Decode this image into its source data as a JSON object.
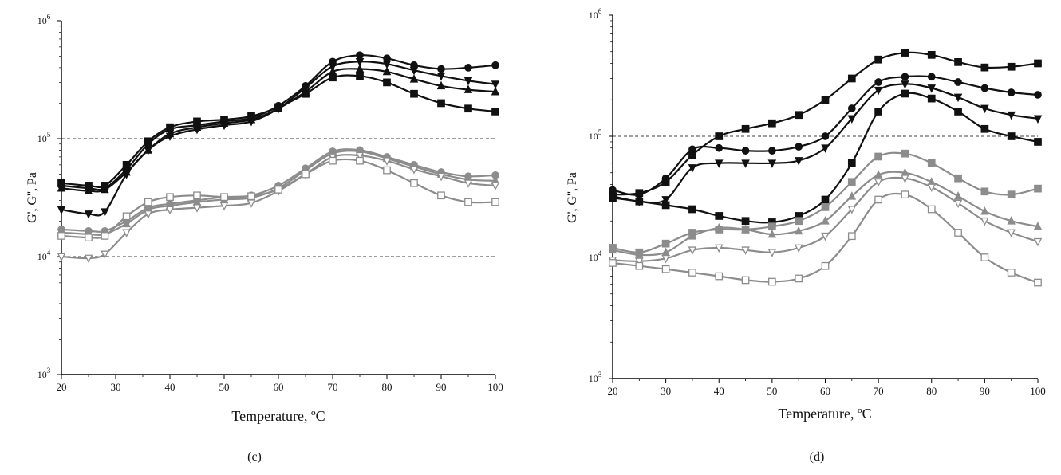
{
  "chart_data": [
    {
      "type": "line",
      "panel_label": "(c)",
      "xlabel": "Temperature, ºC",
      "ylabel": "G', G'', Pa",
      "xlim": [
        20,
        100
      ],
      "ylim": [
        1000,
        1000000
      ],
      "yscale": "log",
      "grid": false,
      "reference_lines": [
        10000,
        100000
      ],
      "x_ticks": [
        "20",
        "30",
        "40",
        "50",
        "60",
        "70",
        "80",
        "90",
        "100"
      ],
      "y_ticks": [
        {
          "value": 1000,
          "base": "10",
          "exp": "3"
        },
        {
          "value": 10000,
          "base": "10",
          "exp": "4"
        },
        {
          "value": 100000,
          "base": "10",
          "exp": "5"
        },
        {
          "value": 1000000,
          "base": "10",
          "exp": "6"
        }
      ],
      "series": [
        {
          "color": "#111111",
          "marker": "circle",
          "filled": true,
          "x": [
            20,
            25,
            28,
            32,
            36,
            40,
            45,
            50,
            55,
            60,
            65,
            70,
            75,
            80,
            85,
            90,
            95,
            100
          ],
          "y": [
            40000,
            38000,
            38000,
            55000,
            90000,
            120000,
            130000,
            140000,
            150000,
            190000,
            280000,
            450000,
            510000,
            480000,
            420000,
            390000,
            400000,
            420000
          ]
        },
        {
          "color": "#111111",
          "marker": "triangle-down",
          "filled": true,
          "x": [
            20,
            25,
            28,
            32,
            36,
            40,
            45,
            50,
            55,
            60,
            65,
            70,
            75,
            80,
            85,
            90,
            95,
            100
          ],
          "y": [
            25000,
            23000,
            24000,
            50000,
            80000,
            105000,
            120000,
            130000,
            140000,
            180000,
            270000,
            410000,
            450000,
            430000,
            380000,
            340000,
            310000,
            290000
          ]
        },
        {
          "color": "#111111",
          "marker": "triangle-up",
          "filled": true,
          "x": [
            20,
            25,
            28,
            32,
            36,
            40,
            45,
            50,
            55,
            60,
            65,
            70,
            75,
            80,
            85,
            90,
            95,
            100
          ],
          "y": [
            38000,
            36000,
            37000,
            52000,
            80000,
            110000,
            125000,
            135000,
            145000,
            180000,
            250000,
            370000,
            390000,
            370000,
            320000,
            280000,
            260000,
            250000
          ]
        },
        {
          "color": "#111111",
          "marker": "square",
          "filled": true,
          "x": [
            20,
            25,
            28,
            32,
            36,
            40,
            45,
            50,
            55,
            60,
            65,
            70,
            75,
            80,
            85,
            90,
            95,
            100
          ],
          "y": [
            42000,
            40000,
            40000,
            60000,
            95000,
            125000,
            140000,
            145000,
            155000,
            185000,
            240000,
            330000,
            340000,
            300000,
            240000,
            200000,
            180000,
            170000
          ]
        },
        {
          "color": "#8c8c8c",
          "marker": "circle",
          "filled": true,
          "x": [
            20,
            25,
            28,
            32,
            36,
            40,
            45,
            50,
            55,
            60,
            65,
            70,
            75,
            80,
            85,
            90,
            95,
            100
          ],
          "y": [
            17000,
            16500,
            16500,
            20000,
            26000,
            28000,
            30000,
            32000,
            33000,
            40000,
            56000,
            78000,
            80000,
            70000,
            60000,
            52000,
            48000,
            49000
          ]
        },
        {
          "color": "#8c8c8c",
          "marker": "triangle-up",
          "filled": true,
          "x": [
            20,
            25,
            28,
            32,
            36,
            40,
            45,
            50,
            55,
            60,
            65,
            70,
            75,
            80,
            85,
            90,
            95,
            100
          ],
          "y": [
            16000,
            15500,
            15500,
            19000,
            25000,
            27000,
            29000,
            30500,
            31500,
            38000,
            54000,
            75000,
            78000,
            68000,
            58000,
            50000,
            45000,
            44000
          ]
        },
        {
          "color": "#8c8c8c",
          "marker": "triangle-down",
          "filled": false,
          "x": [
            20,
            25,
            28,
            32,
            36,
            40,
            45,
            50,
            55,
            60,
            65,
            70,
            75,
            80,
            85,
            90,
            95,
            100
          ],
          "y": [
            10000,
            9700,
            10500,
            16000,
            23000,
            25000,
            26000,
            27000,
            28500,
            36000,
            50000,
            70000,
            72000,
            65000,
            55000,
            48000,
            42000,
            40000
          ]
        },
        {
          "color": "#8c8c8c",
          "marker": "square",
          "filled": false,
          "x": [
            20,
            25,
            28,
            32,
            36,
            40,
            45,
            50,
            55,
            60,
            65,
            70,
            75,
            80,
            85,
            90,
            95,
            100
          ],
          "y": [
            15000,
            14500,
            15000,
            22000,
            29000,
            32000,
            33000,
            32000,
            32500,
            37000,
            50000,
            65000,
            65000,
            54000,
            42000,
            33000,
            29000,
            29000
          ]
        }
      ]
    },
    {
      "type": "line",
      "panel_label": "(d)",
      "xlabel": "Temperature, ºC",
      "ylabel": "G', G'', Pa",
      "xlim": [
        20,
        100
      ],
      "ylim": [
        1000,
        1000000
      ],
      "yscale": "log",
      "grid": false,
      "reference_lines": [
        100000
      ],
      "x_ticks": [
        "20",
        "30",
        "40",
        "50",
        "60",
        "70",
        "80",
        "90",
        "100"
      ],
      "y_ticks": [
        {
          "value": 1000,
          "base": "10",
          "exp": "3"
        },
        {
          "value": 10000,
          "base": "10",
          "exp": "4"
        },
        {
          "value": 100000,
          "base": "10",
          "exp": "5"
        },
        {
          "value": 1000000,
          "base": "10",
          "exp": "6"
        }
      ],
      "series": [
        {
          "color": "#111111",
          "marker": "square",
          "filled": true,
          "x": [
            20,
            25,
            30,
            35,
            40,
            45,
            50,
            55,
            60,
            65,
            70,
            75,
            80,
            85,
            90,
            95,
            100
          ],
          "y": [
            33000,
            34000,
            42000,
            70000,
            100000,
            115000,
            128000,
            150000,
            200000,
            300000,
            430000,
            490000,
            470000,
            410000,
            370000,
            375000,
            400000
          ]
        },
        {
          "color": "#111111",
          "marker": "circle",
          "filled": true,
          "x": [
            20,
            25,
            30,
            35,
            40,
            45,
            50,
            55,
            60,
            65,
            70,
            75,
            80,
            85,
            90,
            95,
            100
          ],
          "y": [
            36000,
            33000,
            45000,
            78000,
            80000,
            76000,
            76000,
            82000,
            100000,
            170000,
            280000,
            310000,
            310000,
            280000,
            250000,
            230000,
            220000
          ]
        },
        {
          "color": "#111111",
          "marker": "triangle-down",
          "filled": true,
          "x": [
            20,
            25,
            30,
            35,
            40,
            45,
            50,
            55,
            60,
            65,
            70,
            75,
            80,
            85,
            90,
            95,
            100
          ],
          "y": [
            32000,
            29000,
            30000,
            55000,
            60000,
            60000,
            60000,
            63000,
            80000,
            140000,
            240000,
            270000,
            250000,
            210000,
            170000,
            150000,
            140000
          ]
        },
        {
          "color": "#111111",
          "marker": "square",
          "filled": true,
          "x": [
            20,
            25,
            30,
            35,
            40,
            45,
            50,
            55,
            60,
            65,
            70,
            75,
            80,
            85,
            90,
            95,
            100
          ],
          "y": [
            31000,
            29000,
            27000,
            25000,
            22000,
            20000,
            19500,
            22000,
            30000,
            60000,
            160000,
            225000,
            205000,
            160000,
            115000,
            100000,
            90000
          ]
        },
        {
          "color": "#8c8c8c",
          "marker": "square",
          "filled": true,
          "x": [
            20,
            25,
            30,
            35,
            40,
            45,
            50,
            55,
            60,
            65,
            70,
            75,
            80,
            85,
            90,
            95,
            100
          ],
          "y": [
            12000,
            11000,
            13000,
            16000,
            17000,
            17000,
            18000,
            20000,
            26000,
            42000,
            68000,
            72000,
            60000,
            45000,
            35000,
            33000,
            37000
          ]
        },
        {
          "color": "#8c8c8c",
          "marker": "triangle-up",
          "filled": true,
          "x": [
            20,
            25,
            30,
            35,
            40,
            45,
            50,
            55,
            60,
            65,
            70,
            75,
            80,
            85,
            90,
            95,
            100
          ],
          "y": [
            11500,
            10500,
            11000,
            15000,
            17500,
            17000,
            15500,
            16500,
            20000,
            32000,
            48000,
            50000,
            42000,
            32000,
            24000,
            20000,
            18000
          ]
        },
        {
          "color": "#8c8c8c",
          "marker": "triangle-down",
          "filled": false,
          "x": [
            20,
            25,
            30,
            35,
            40,
            45,
            50,
            55,
            60,
            65,
            70,
            75,
            80,
            85,
            90,
            95,
            100
          ],
          "y": [
            9500,
            9300,
            9800,
            11500,
            12000,
            11500,
            11000,
            12000,
            15000,
            25000,
            42000,
            45000,
            38000,
            28000,
            20000,
            16000,
            13500
          ]
        },
        {
          "color": "#8c8c8c",
          "marker": "square",
          "filled": false,
          "x": [
            20,
            25,
            30,
            35,
            40,
            45,
            50,
            55,
            60,
            65,
            70,
            75,
            80,
            85,
            90,
            95,
            100
          ],
          "y": [
            9000,
            8500,
            8000,
            7500,
            7000,
            6500,
            6300,
            6700,
            8500,
            15000,
            30000,
            33000,
            25000,
            16000,
            10000,
            7500,
            6200
          ]
        }
      ]
    }
  ]
}
